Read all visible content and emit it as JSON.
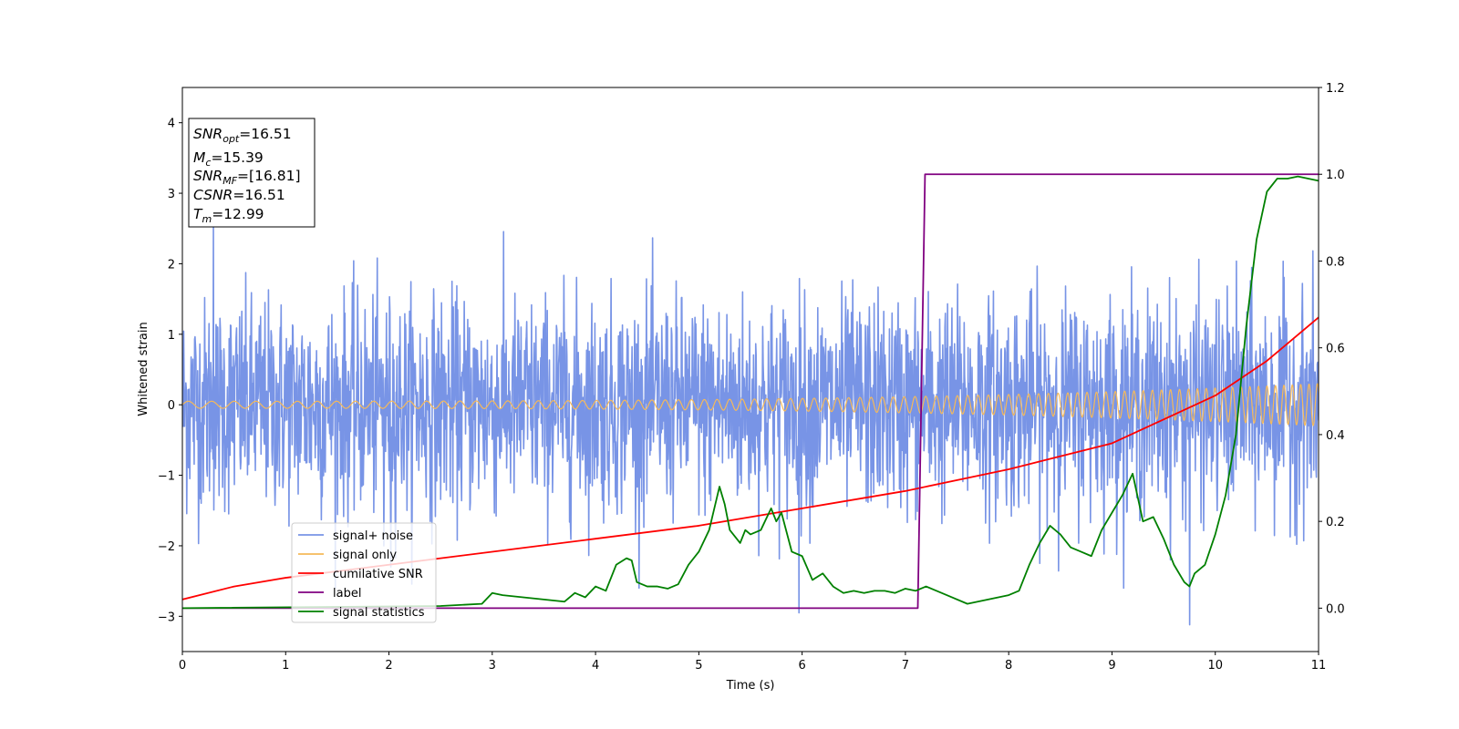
{
  "chart_data": {
    "type": "line",
    "xlabel": "Time (s)",
    "ylabel": "Whitened strain",
    "xlim": [
      0,
      11
    ],
    "ylim": [
      -3.5,
      4.5
    ],
    "y2lim": [
      -0.1,
      1.2
    ],
    "x_ticks": [
      "0",
      "1",
      "2",
      "3",
      "4",
      "5",
      "6",
      "7",
      "8",
      "9",
      "10",
      "11"
    ],
    "y_ticks": [
      "−3",
      "−2",
      "−1",
      "0",
      "1",
      "2",
      "3",
      "4"
    ],
    "y2_ticks": [
      "0.0",
      "0.2",
      "0.4",
      "0.6",
      "0.8",
      "1.0",
      "1.2"
    ],
    "legend_position": "lower-left",
    "annotation": [
      {
        "base": "SNR",
        "sub": "opt",
        "value": "=16.51"
      },
      {
        "base": "M",
        "sub": "c",
        "value": "=15.39"
      },
      {
        "base": "SNR",
        "sub": "MF",
        "value": "=[16.81]"
      },
      {
        "base": "CSNR",
        "sub": "",
        "value": "=16.51"
      },
      {
        "base": "T",
        "sub": "m",
        "value": "=12.99"
      }
    ],
    "series": [
      {
        "name": "signal+ noise",
        "color": "#7894e6",
        "axis": "left",
        "kind": "noise",
        "sigma": 0.75,
        "extremes": [
          [
            0.3,
            2.6
          ],
          [
            2.02,
            -2.3
          ],
          [
            5.97,
            -2.95
          ],
          [
            9.75,
            -3.12
          ],
          [
            1.95,
            -2.0
          ]
        ]
      },
      {
        "name": "signal only",
        "color": "#f5b95a",
        "axis": "left",
        "kind": "chirp",
        "amplitude_start": 0.05,
        "amplitude_end": 0.3
      },
      {
        "name": "cumilative SNR",
        "color": "#ff0000",
        "axis": "right",
        "x": [
          0,
          0.5,
          1,
          2,
          3,
          4,
          5,
          6,
          7,
          8,
          9,
          10,
          10.5,
          11
        ],
        "y": [
          0.02,
          0.05,
          0.07,
          0.1,
          0.13,
          0.16,
          0.19,
          0.23,
          0.27,
          0.32,
          0.38,
          0.49,
          0.57,
          0.67
        ]
      },
      {
        "name": "label",
        "color": "#800080",
        "axis": "right",
        "x": [
          0,
          7.12,
          7.19,
          11
        ],
        "y": [
          0.0,
          0.0,
          1.0,
          1.0
        ]
      },
      {
        "name": "signal statistics",
        "color": "#008000",
        "axis": "right",
        "x": [
          0,
          2.5,
          2.9,
          3.0,
          3.1,
          3.3,
          3.5,
          3.7,
          3.8,
          3.9,
          4.0,
          4.1,
          4.2,
          4.3,
          4.35,
          4.4,
          4.5,
          4.6,
          4.7,
          4.8,
          4.9,
          5.0,
          5.1,
          5.2,
          5.25,
          5.3,
          5.4,
          5.45,
          5.5,
          5.6,
          5.7,
          5.75,
          5.8,
          5.9,
          6.0,
          6.1,
          6.2,
          6.3,
          6.4,
          6.5,
          6.6,
          6.7,
          6.8,
          6.9,
          7.0,
          7.1,
          7.2,
          7.3,
          7.4,
          7.6,
          7.8,
          8.0,
          8.1,
          8.2,
          8.3,
          8.4,
          8.5,
          8.6,
          8.7,
          8.8,
          8.9,
          9.0,
          9.1,
          9.2,
          9.3,
          9.4,
          9.5,
          9.6,
          9.7,
          9.75,
          9.8,
          9.9,
          10.0,
          10.1,
          10.2,
          10.3,
          10.4,
          10.5,
          10.6,
          10.7,
          10.8,
          10.9,
          11.0
        ],
        "y": [
          0.0,
          0.005,
          0.01,
          0.035,
          0.03,
          0.025,
          0.02,
          0.015,
          0.035,
          0.025,
          0.05,
          0.04,
          0.1,
          0.115,
          0.11,
          0.06,
          0.05,
          0.05,
          0.045,
          0.055,
          0.1,
          0.13,
          0.18,
          0.28,
          0.24,
          0.18,
          0.15,
          0.18,
          0.17,
          0.18,
          0.23,
          0.2,
          0.22,
          0.13,
          0.12,
          0.065,
          0.08,
          0.05,
          0.035,
          0.04,
          0.035,
          0.04,
          0.04,
          0.035,
          0.045,
          0.04,
          0.05,
          0.04,
          0.03,
          0.01,
          0.02,
          0.03,
          0.04,
          0.1,
          0.15,
          0.19,
          0.17,
          0.14,
          0.13,
          0.12,
          0.18,
          0.22,
          0.26,
          0.31,
          0.2,
          0.21,
          0.16,
          0.1,
          0.06,
          0.05,
          0.08,
          0.1,
          0.17,
          0.26,
          0.4,
          0.65,
          0.85,
          0.96,
          0.99,
          0.99,
          0.995,
          0.99,
          0.985
        ]
      }
    ]
  }
}
